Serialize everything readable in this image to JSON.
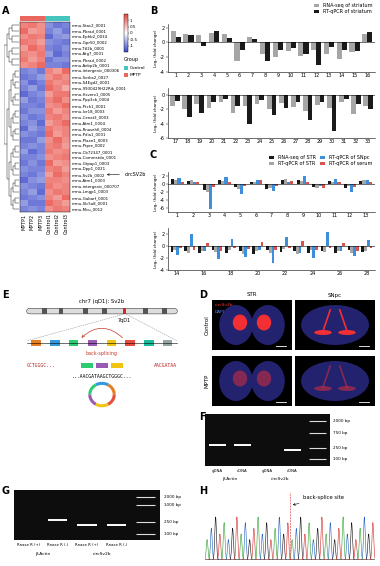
{
  "panel_labels": [
    "A",
    "B",
    "C",
    "D",
    "E",
    "F",
    "G",
    "H"
  ],
  "chart_data": [
    {
      "type": "heatmap",
      "rows": [
        "mmu-Stac2_0001",
        "mmu-Pbrad_0001",
        "mmu-Ephb2_0034",
        "mmu-Gpr50_0002",
        "mmu-Ttl2b_0001",
        "mmu-Atg7_0001",
        "mmu-Pbrad_0002",
        "mmu-Aebp2b_0001",
        "mmu-intergenic_000306",
        "mmu-Sorbs2_0027",
        "mmu-S4Egd2_0001",
        "mmu-9930429H22Rik_0001",
        "mmu-Hsverx1_0005",
        "mmu-Ppp3cb_0004",
        "mmu-Ptch1_0001",
        "mmu-Ivr18_0003",
        "mmu-Cenat3_0003",
        "mmu-Atrn1_0004",
        "mmu-Rnaseh6_0004",
        "mmu-Pdia1_0001",
        "mmu-Plaxn1_0003",
        "mmu-Ptpre_0002",
        "mmu-Cb72347_0001",
        "mmu-Commstdo_0001",
        "mmu-Gtpap1_0003",
        "mmu-Dpp1_0021",
        "mmu-Sv2b_0002",
        "mmu-Atrn1_0003",
        "mmu-intergenic_000707",
        "mmu-Lmgp1_0003",
        "mmu-Gabarf_0001",
        "mmu-Slc5a8_0001",
        "mmu-Mcu_0012"
      ],
      "columns": [
        "MPTP1",
        "MPTP2",
        "MPTP3",
        "Control1",
        "Control2",
        "Control3"
      ],
      "groups": [
        "MPTP",
        "MPTP",
        "MPTP",
        "Control",
        "Control",
        "Control"
      ],
      "group_legend": {
        "title": "Group",
        "entries": [
          {
            "name": "Control",
            "color": "#45c4c0"
          },
          {
            "name": "MPTP",
            "color": "#e8675f"
          }
        ]
      },
      "cells": [
        [
          1.0,
          1.1,
          0.9,
          -0.9,
          -1.1,
          -1.0
        ],
        [
          1.2,
          0.8,
          0.9,
          -1.0,
          -0.8,
          -1.1
        ],
        [
          0.9,
          1.1,
          1.0,
          -1.2,
          -0.9,
          -0.8
        ],
        [
          1.1,
          1.0,
          0.8,
          -0.9,
          -1.0,
          -1.1
        ],
        [
          0.8,
          1.2,
          1.0,
          -1.0,
          -1.1,
          -0.9
        ],
        [
          1.0,
          0.9,
          1.1,
          -0.8,
          -1.2,
          -1.0
        ],
        [
          1.1,
          0.8,
          1.0,
          -1.1,
          -0.9,
          -0.9
        ],
        [
          0.9,
          1.0,
          1.2,
          -1.0,
          -1.0,
          -1.1
        ],
        [
          -1.0,
          -0.9,
          -1.1,
          1.0,
          0.8,
          1.2
        ],
        [
          -1.1,
          -1.0,
          -0.8,
          0.9,
          1.1,
          0.9
        ],
        [
          -0.9,
          -1.2,
          -1.0,
          1.1,
          0.9,
          1.0
        ],
        [
          -1.0,
          -0.8,
          -1.1,
          1.2,
          1.0,
          0.7
        ],
        [
          -1.2,
          -1.0,
          -0.9,
          0.8,
          1.1,
          1.1
        ],
        [
          -0.8,
          -1.1,
          -1.0,
          1.0,
          1.2,
          0.9
        ],
        [
          -1.0,
          -1.0,
          -1.1,
          0.9,
          1.0,
          1.2
        ],
        [
          -1.1,
          -0.9,
          -0.9,
          1.1,
          0.8,
          1.0
        ],
        [
          -0.9,
          -1.1,
          -1.0,
          1.0,
          1.1,
          0.9
        ],
        [
          -1.0,
          -0.9,
          -1.2,
          0.8,
          1.0,
          1.2
        ],
        [
          -1.2,
          -0.8,
          -1.0,
          1.1,
          0.9,
          1.0
        ],
        [
          -0.9,
          -1.0,
          -1.1,
          1.2,
          0.8,
          1.0
        ],
        [
          -1.1,
          -1.1,
          -0.8,
          0.9,
          1.2,
          0.9
        ],
        [
          -1.0,
          -0.9,
          -1.0,
          1.0,
          1.1,
          0.8
        ],
        [
          -0.8,
          -1.2,
          -1.0,
          1.1,
          0.9,
          1.0
        ],
        [
          -1.0,
          -1.0,
          -0.9,
          0.9,
          1.0,
          1.1
        ],
        [
          -1.1,
          -0.9,
          -1.1,
          1.2,
          0.8,
          0.9
        ],
        [
          -0.9,
          -1.0,
          -1.0,
          1.0,
          1.1,
          0.8
        ],
        [
          -1.0,
          -1.1,
          -0.9,
          0.8,
          1.2,
          1.0
        ],
        [
          -1.2,
          -0.9,
          -0.8,
          1.0,
          1.0,
          0.9
        ],
        [
          -0.9,
          -1.0,
          -1.1,
          1.1,
          0.9,
          1.0
        ],
        [
          -1.0,
          -0.8,
          -1.2,
          0.9,
          1.1,
          1.0
        ],
        [
          -1.1,
          -1.0,
          -0.9,
          1.0,
          0.8,
          1.2
        ],
        [
          -0.8,
          -1.1,
          -1.1,
          1.2,
          1.0,
          0.8
        ],
        [
          -1.0,
          -0.9,
          -1.0,
          0.9,
          1.1,
          1.0
        ]
      ],
      "colorbar": {
        "range": [
          -1.5,
          1.5
        ],
        "ticks": [
          -1,
          -0.5,
          0,
          0.5,
          1
        ]
      },
      "annotation": {
        "text": "circSV2b",
        "row": "mmu-Sv2b_0002"
      }
    },
    {
      "type": "bar",
      "y_label": "Log₂ (fold change)",
      "legend": "upper right",
      "categories": [
        "1",
        "2",
        "3",
        "4",
        "5",
        "6",
        "7",
        "8",
        "9",
        "10",
        "11",
        "12",
        "13",
        "14",
        "15",
        "16"
      ],
      "series": [
        {
          "name": "RNA-seq of striatum",
          "color": "#a6a6a6",
          "values": [
            1.5,
            1.2,
            1.0,
            1.3,
            1.1,
            -2.5,
            0.8,
            -1.5,
            -2.0,
            -1.2,
            -1.8,
            -1.0,
            -1.5,
            -2.2,
            -1.3,
            1.2
          ]
        },
        {
          "name": "RT-qPCR of striatum",
          "color": "#1a1a1a",
          "values": [
            0.8,
            1.0,
            -0.5,
            1.5,
            0.6,
            -1.0,
            0.5,
            -2.5,
            -1.0,
            -0.8,
            -1.5,
            -3.0,
            -0.6,
            -1.0,
            -1.2,
            1.4
          ]
        }
      ],
      "ylim": [
        -4,
        2.5
      ],
      "yticks": [
        -4,
        -2,
        0,
        2
      ]
    },
    {
      "type": "bar",
      "y_label": "Log₂ (fold change)",
      "categories": [
        "17",
        "18",
        "19",
        "20",
        "21",
        "22",
        "23",
        "24",
        "25",
        "26",
        "27",
        "28",
        "29",
        "30",
        "31",
        "32",
        "33"
      ],
      "series": [
        {
          "color": "#a6a6a6",
          "values": [
            -1.5,
            -2.0,
            -1.2,
            -1.8,
            -1.0,
            -2.5,
            -1.5,
            -1.3,
            -2.0,
            -1.1,
            -1.6,
            -2.2,
            -1.4,
            -1.8,
            -1.0,
            -2.6,
            -1.5
          ]
        },
        {
          "color": "#1a1a1a",
          "values": [
            -0.8,
            -3.0,
            -2.5,
            -1.0,
            -0.5,
            -1.5,
            -4.0,
            -0.7,
            -2.8,
            -1.8,
            -0.9,
            -3.5,
            -1.0,
            -5.0,
            -0.6,
            -1.2,
            -1.9
          ]
        }
      ],
      "ylim": [
        -6,
        1
      ],
      "yticks": [
        -6,
        -4,
        -2,
        0
      ]
    },
    {
      "type": "bar",
      "y_label": "Log₂ (fold change)",
      "legend": "upper right",
      "categories": [
        "1",
        "2",
        "3",
        "4",
        "5",
        "6",
        "7",
        "8",
        "9",
        "10",
        "11",
        "12",
        "13"
      ],
      "series": [
        {
          "name": "RNA-seq of STR",
          "color": "#1a1a1a",
          "values": [
            1.2,
            0.8,
            -1.5,
            1.0,
            -0.8,
            0.6,
            -1.2,
            0.9,
            1.1,
            -0.7,
            0.8,
            -1.0,
            0.7
          ]
        },
        {
          "name": "RT-qPCR of STR",
          "color": "#a6a6a6",
          "values": [
            0.9,
            1.1,
            -2.0,
            0.7,
            -1.2,
            0.4,
            -0.9,
            1.3,
            0.8,
            -1.1,
            0.6,
            -0.6,
            1.0
          ]
        },
        {
          "name": "RT-qPCR of SNpc",
          "color": "#3d8fd9",
          "values": [
            1.5,
            0.6,
            -6.2,
            1.8,
            -2.5,
            0.9,
            -1.8,
            0.5,
            1.9,
            -0.4,
            1.2,
            -2.0,
            0.9
          ]
        },
        {
          "name": "RT-qPCR of serum",
          "color": "#d9534f",
          "values": [
            0.5,
            0.4,
            -0.8,
            0.6,
            -0.5,
            1.1,
            -0.6,
            0.7,
            0.5,
            -0.9,
            0.4,
            -0.7,
            0.6
          ]
        }
      ],
      "ylim": [
        -7,
        3
      ],
      "yticks": [
        -6,
        -4,
        -2,
        0,
        2
      ]
    },
    {
      "type": "bar",
      "y_label": "Log₂ (fold change)",
      "categories": [
        "14",
        null,
        "16",
        null,
        "18",
        null,
        "20",
        null,
        "22",
        null,
        "24",
        null,
        "26",
        null,
        "28"
      ],
      "series": [
        {
          "color": "#1a1a1a",
          "values": [
            -1.0,
            -0.8,
            -1.2,
            -0.6,
            -1.1,
            -0.9,
            -1.3,
            -0.7,
            -1.0,
            -0.8,
            -1.2,
            -0.9,
            -1.1,
            -0.6,
            -1.0
          ]
        },
        {
          "color": "#a6a6a6",
          "values": [
            -0.7,
            -1.2,
            -0.8,
            -1.0,
            -0.6,
            -1.4,
            -0.9,
            -1.1,
            -0.5,
            -1.3,
            -0.7,
            -1.0,
            -0.8,
            -1.2,
            -0.9
          ]
        },
        {
          "color": "#3d8fd9",
          "values": [
            -1.5,
            2.0,
            -0.9,
            -2.2,
            1.2,
            -1.8,
            -0.6,
            -2.8,
            1.5,
            -1.1,
            -2.0,
            2.4,
            -0.8,
            -1.6,
            1.0
          ]
        },
        {
          "color": "#d9534f",
          "values": [
            -0.4,
            -0.6,
            0.5,
            -0.8,
            -0.3,
            -0.5,
            0.6,
            -0.7,
            -0.4,
            0.8,
            -0.6,
            -0.3,
            0.5,
            -0.9,
            -0.4
          ]
        }
      ],
      "ylim": [
        -4,
        3
      ],
      "yticks": [
        -4,
        -2,
        0,
        2
      ]
    }
  ],
  "D": {
    "columns": [
      "STR",
      "SNpc"
    ],
    "rows": [
      "Control",
      "MPTP"
    ],
    "stains": [
      {
        "name": "circSv2b",
        "color": "#ff3030"
      },
      {
        "name": "DAPI",
        "color": "#5a7cff"
      }
    ]
  },
  "E": {
    "title": "chr7 (qD1): Sv2b",
    "band": "7qD1",
    "process": "back-splicing",
    "left_sequence": "GCTGGGC...",
    "right_sequence": "AACGATAA",
    "junction_sequence": "...AACGATAAGCTGGGC..."
  },
  "F": {
    "lanes": [
      "gDNA",
      "cDNA",
      "gDNA",
      "cDNA"
    ],
    "lane_groups": [
      "β-Actin",
      "β-Actin",
      "circSv2b",
      "circSv2b"
    ],
    "bands": [
      300,
      300,
      null,
      200
    ],
    "markers": [
      {
        "value": 2000,
        "label": "2000 bp"
      },
      {
        "value": 750,
        "label": "750 bp"
      },
      {
        "value": 250,
        "label": "250 bp"
      },
      {
        "value": 100,
        "label": "100 bp"
      }
    ]
  },
  "G": {
    "lanes": [
      "Rnase R (+)",
      "Rnase R (-)",
      "Rnase R (+)",
      "Rnase R (-)"
    ],
    "lane_groups": [
      "β-Actin",
      "β-Actin",
      "circSv2b",
      "circSv2b"
    ],
    "bands": [
      null,
      300,
      200,
      200
    ],
    "markers": [
      {
        "value": 2000,
        "label": "2000 bp"
      },
      {
        "value": 1000,
        "label": "1000 bp"
      },
      {
        "value": 250,
        "label": "250 bp"
      },
      {
        "value": 100,
        "label": "100 bp"
      }
    ]
  },
  "H": {
    "annotation": "back-splice site"
  }
}
